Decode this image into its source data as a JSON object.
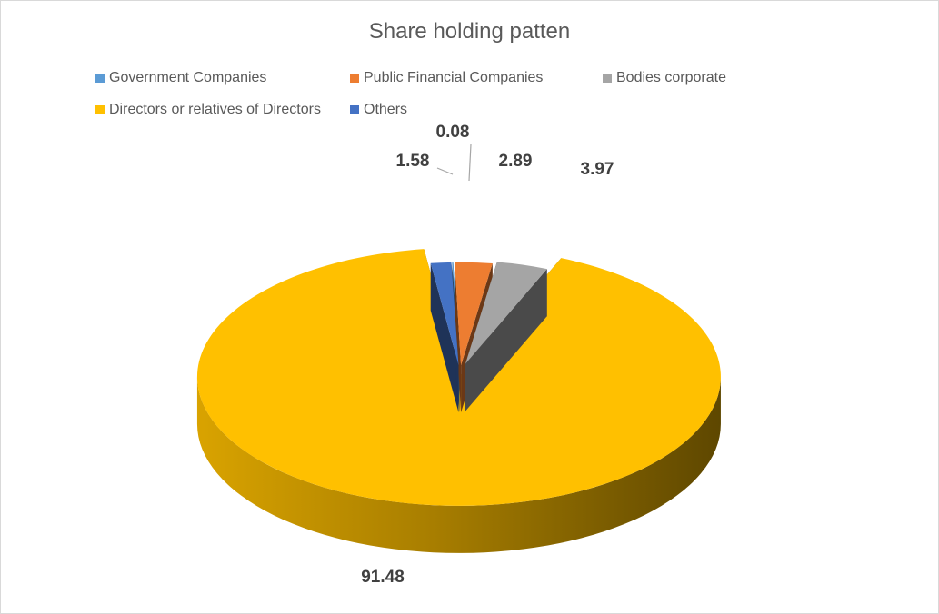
{
  "chart_data": {
    "type": "pie",
    "title": "Share holding patten",
    "legend_position": "top",
    "three_d": true,
    "exploded": true,
    "slices": [
      {
        "label": "Government Companies",
        "value": 0.08,
        "color": "#5B9BD5",
        "data_label": "0.08"
      },
      {
        "label": "Public Financial Companies",
        "value": 2.89,
        "color": "#ED7D31",
        "data_label": "2.89"
      },
      {
        "label": "Bodies corporate",
        "value": 3.97,
        "color": "#A5A5A5",
        "data_label": "3.97"
      },
      {
        "label": "Directors or relatives of Directors",
        "value": 91.48,
        "color": "#FFC000",
        "data_label": "91.48"
      },
      {
        "label": "Others",
        "value": 1.58,
        "color": "#4472C4",
        "data_label": "1.58"
      }
    ]
  }
}
